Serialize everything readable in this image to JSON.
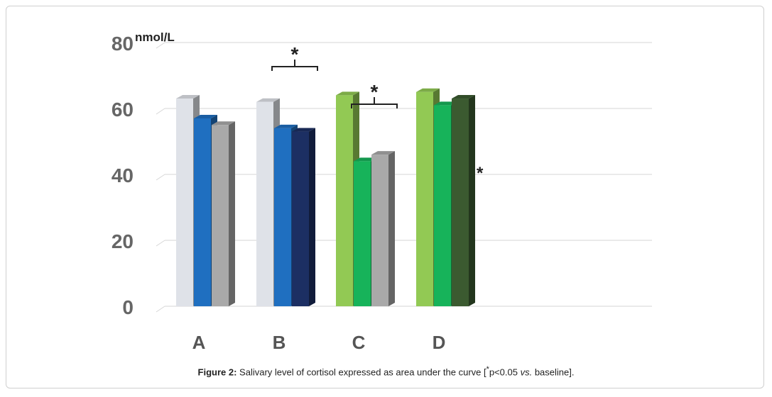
{
  "chart_data": {
    "type": "bar",
    "ylabel": "nmol/L",
    "ylim": [
      0,
      80
    ],
    "yticks": [
      "0",
      "20",
      "40",
      "60",
      "80"
    ],
    "categories": [
      "A",
      "B",
      "C",
      "D"
    ],
    "groups": [
      {
        "category": "A",
        "values": [
          63,
          57,
          55
        ],
        "colors": [
          "#dfe2e8",
          "#1f6fc0",
          "#a9a9a9"
        ]
      },
      {
        "category": "B",
        "values": [
          62,
          54,
          53
        ],
        "colors": [
          "#dfe2e8",
          "#1f6fc0",
          "#1c2f63"
        ]
      },
      {
        "category": "C",
        "values": [
          64,
          44,
          46
        ],
        "colors": [
          "#92c954",
          "#17b35a",
          "#a9a9a9"
        ]
      },
      {
        "category": "D",
        "values": [
          65,
          61,
          63
        ],
        "colors": [
          "#92c954",
          "#17b35a",
          "#3b5a30"
        ]
      }
    ],
    "annotations": [
      {
        "text": "*",
        "group": "B",
        "type": "bracket"
      },
      {
        "text": "*",
        "group": "C",
        "type": "bracket"
      },
      {
        "text": "*",
        "group": "D",
        "type": "star"
      }
    ],
    "grid": true
  },
  "caption": {
    "label": "Figure 2:",
    "text_before": " Salivary level of cortisol expressed as area under the curve [",
    "star": "*",
    "text_mid": "p<0.05 ",
    "vs": "vs.",
    "text_after": " baseline]."
  }
}
